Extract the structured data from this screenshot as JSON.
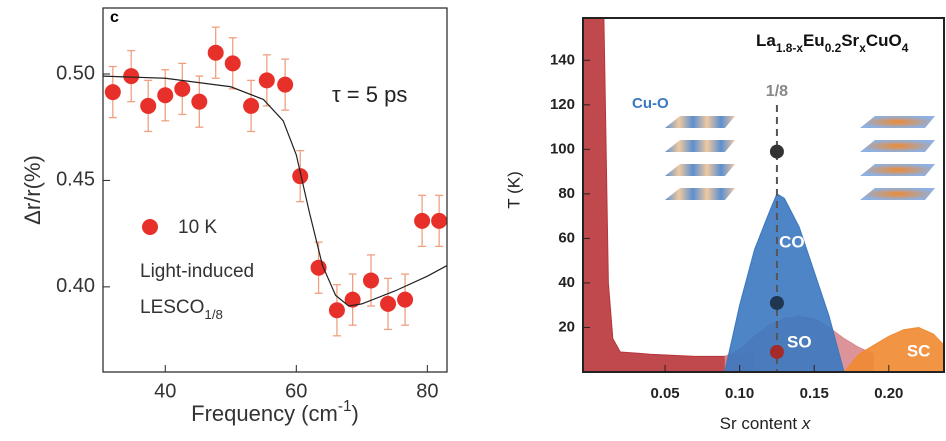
{
  "chart_data": [
    {
      "type": "scatter",
      "panel_label": "c",
      "xlabel_parts": [
        {
          "text": "Frequency (cm"
        },
        {
          "text": "-1",
          "sup": true
        },
        {
          "text": ")"
        }
      ],
      "ylabel": "Δr/r(%)",
      "annotation": "τ = 5 ps",
      "note_lines": [
        [
          {
            "text": "Light-induced"
          }
        ],
        [
          {
            "text": "LESCO"
          },
          {
            "text": "1/8",
            "sub": true
          }
        ]
      ],
      "xlim": [
        30.5,
        83
      ],
      "ylim": [
        0.36,
        0.531
      ],
      "xticks": [
        40,
        60,
        80
      ],
      "yticks": [
        {
          "value": 0.4,
          "label": "0.40"
        },
        {
          "value": 0.45,
          "label": "0.45"
        },
        {
          "value": 0.5,
          "label": "0.50"
        }
      ],
      "series": [
        {
          "name": "10 K",
          "color": "#e8302a",
          "x": [
            32,
            34.8,
            37.4,
            40,
            42.6,
            45.2,
            47.7,
            50.3,
            53.1,
            55.5,
            58.3,
            60.6,
            63.4,
            66.2,
            68.6,
            71.4,
            74,
            76.6,
            79.2,
            81.8
          ],
          "values": [
            0.4915,
            0.499,
            0.485,
            0.49,
            0.493,
            0.487,
            0.51,
            0.505,
            0.485,
            0.497,
            0.495,
            0.452,
            0.409,
            0.389,
            0.394,
            0.403,
            0.392,
            0.394,
            0.431,
            0.431
          ],
          "errors": [
            0.012,
            0.012,
            0.012,
            0.012,
            0.012,
            0.012,
            0.012,
            0.012,
            0.012,
            0.012,
            0.012,
            0.012,
            0.012,
            0.012,
            0.012,
            0.012,
            0.012,
            0.012,
            0.012,
            0.012
          ]
        },
        {
          "color": "#222222",
          "x": [
            30.5,
            40,
            50,
            55,
            58,
            60,
            62,
            64,
            66,
            68,
            70,
            75,
            80,
            83
          ],
          "values": [
            0.499,
            0.498,
            0.494,
            0.488,
            0.478,
            0.462,
            0.435,
            0.41,
            0.396,
            0.391,
            0.392,
            0.398,
            0.405,
            0.41
          ]
        }
      ]
    },
    {
      "type": "area",
      "title_parts": [
        {
          "text": "La"
        },
        {
          "text": "1.8-x",
          "sub": true
        },
        {
          "text": "Eu"
        },
        {
          "text": "0.2",
          "sub": true
        },
        {
          "text": "Sr"
        },
        {
          "text": "x",
          "sub": true
        },
        {
          "text": "CuO"
        },
        {
          "text": "4",
          "sub": true
        }
      ],
      "xlabel_parts": [
        {
          "text": "Sr content "
        },
        {
          "text": "x",
          "italic": true
        }
      ],
      "ylabel": "T (K)",
      "annotation": "Cu-O",
      "xlim": [
        -0.005,
        0.237
      ],
      "ylim": [
        0,
        159
      ],
      "xticks": [
        0.05,
        {
          "value": 0.1,
          "label": "0.10"
        },
        0.15,
        {
          "value": 0.2,
          "label": "0.20"
        }
      ],
      "yticks": [
        20,
        40,
        60,
        80,
        100,
        120,
        140
      ],
      "reference_line": {
        "x": 0.125,
        "label": "1/8",
        "color": "#555555"
      },
      "series": [
        {
          "color": "#b8353a",
          "x": [
            -0.005,
            0.009,
            0.01,
            0.012,
            0.015,
            0.02,
            0.04,
            0.07,
            0.09,
            0.1,
            0.11
          ],
          "values": [
            159,
            159,
            120,
            40,
            15,
            9,
            8,
            7,
            7,
            8,
            9
          ]
        },
        {
          "name": "SO",
          "color": "#d9888d",
          "x": [
            0.09,
            0.1,
            0.11,
            0.12,
            0.13,
            0.14,
            0.15,
            0.16,
            0.17,
            0.18,
            0.19
          ],
          "values": [
            7,
            10,
            16,
            21,
            24,
            25,
            24,
            20,
            15,
            11,
            8
          ]
        },
        {
          "name": "CO",
          "color": "#3a78c0",
          "x": [
            0.09,
            0.1,
            0.11,
            0.12,
            0.125,
            0.13,
            0.14,
            0.15,
            0.16,
            0.17
          ],
          "values": [
            0,
            30,
            55,
            72,
            80,
            78,
            65,
            45,
            25,
            0
          ]
        },
        {
          "name": "SC",
          "color": "#f08a30",
          "x": [
            0.17,
            0.18,
            0.2,
            0.21,
            0.22,
            0.23,
            0.237
          ],
          "values": [
            0,
            8,
            16,
            19,
            20,
            17,
            12
          ]
        }
      ],
      "points": {
        "x": [
          0.125,
          0.125,
          0.125
        ],
        "values": [
          99,
          31,
          9
        ],
        "colors": [
          "#333333",
          "#1f3550",
          "#a52a2a"
        ]
      }
    }
  ]
}
